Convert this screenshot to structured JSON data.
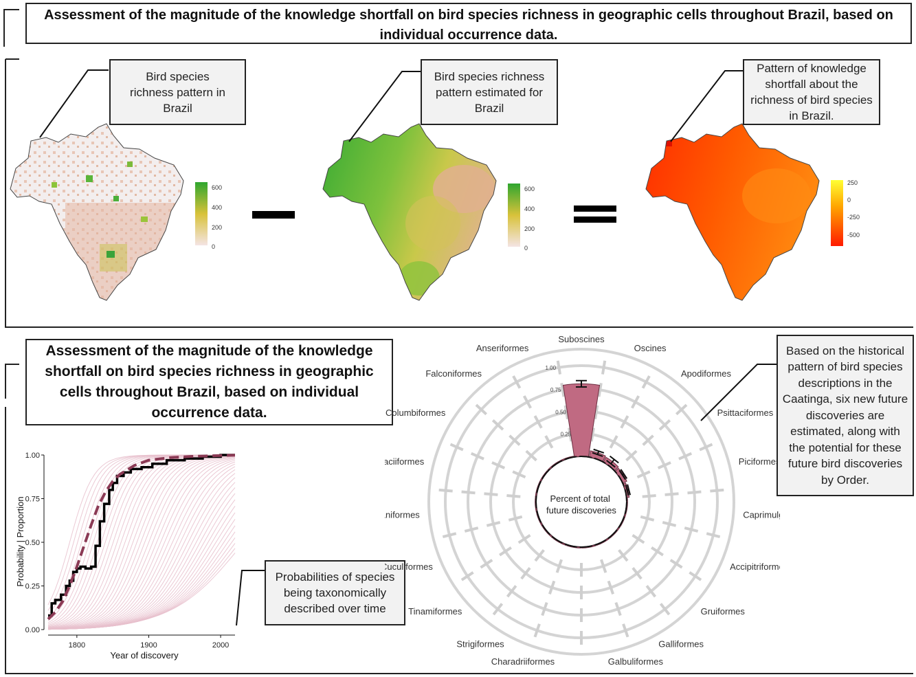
{
  "header": {
    "title": "Assessment of the magnitude of the knowledge shortfall on bird species richness in geographic cells throughout Brazil, based on individual occurrence data."
  },
  "top_panel": {
    "callouts": {
      "observed": "Bird species richness pattern in Brazil",
      "estimated": "Bird species richness pattern estimated for Brazil",
      "shortfall": "Pattern of knowledge shortfall about the richness of bird species in Brazil."
    },
    "legend_observed": [
      "600",
      "400",
      "200",
      "0"
    ],
    "legend_estimated": [
      "600",
      "400",
      "200",
      "0"
    ],
    "legend_shortfall": [
      "250",
      "0",
      "-250",
      "-500"
    ],
    "colors": {
      "richness_low": "#f2d9d9",
      "richness_mid": "#d8c23a",
      "richness_high": "#2fa62f",
      "shortfall_high": "#ffff33",
      "shortfall_low": "#ff1a00"
    }
  },
  "bottom_panel": {
    "title": "Assessment of the magnitude of the knowledge shortfall on bird species richness in geographic cells throughout Brazil, based on individual occurrence data.",
    "probability_callout": "Probabilities of species being taxonomically described over time",
    "caatinga_callout": "Based on the historical pattern of bird species descriptions in the Caatinga, six new future discoveries are estimated, along with the potential for these future bird discoveries by Order.",
    "radial_center_label": "Percent of total future discoveries"
  },
  "chart_data": [
    {
      "type": "line",
      "xlabel": "Year of discovery",
      "ylabel": "Probability | Proportion",
      "xlim": [
        1760,
        2020
      ],
      "ylim": [
        0,
        1
      ],
      "x_ticks": [
        "1800",
        "1900",
        "2000"
      ],
      "y_ticks": [
        "0.00",
        "0.25",
        "0.50",
        "0.75",
        "1.00"
      ],
      "series": [
        {
          "style": "observed-step",
          "color": "#000000",
          "x": [
            1760,
            1765,
            1770,
            1778,
            1785,
            1790,
            1795,
            1800,
            1805,
            1812,
            1820,
            1826,
            1832,
            1838,
            1845,
            1850,
            1856,
            1865,
            1875,
            1890,
            1905,
            1925,
            1950,
            1975,
            2000,
            2020
          ],
          "y": [
            0.08,
            0.15,
            0.17,
            0.2,
            0.25,
            0.28,
            0.33,
            0.35,
            0.36,
            0.35,
            0.36,
            0.48,
            0.62,
            0.72,
            0.8,
            0.84,
            0.88,
            0.9,
            0.92,
            0.93,
            0.95,
            0.97,
            0.98,
            0.99,
            1.0,
            1.0
          ]
        },
        {
          "style": "fitted-dashed",
          "color": "#8b3a55",
          "x": [
            1760,
            1770,
            1780,
            1790,
            1800,
            1810,
            1820,
            1830,
            1840,
            1850,
            1860,
            1880,
            1900,
            1930,
            1960,
            2000,
            2020
          ],
          "y": [
            0.06,
            0.1,
            0.16,
            0.25,
            0.36,
            0.48,
            0.6,
            0.71,
            0.79,
            0.85,
            0.89,
            0.94,
            0.97,
            0.985,
            0.992,
            0.997,
            0.999
          ]
        }
      ]
    },
    {
      "type": "bar",
      "subtype": "radial",
      "r_ticks": [
        "0.25",
        "0.50",
        "0.75",
        "1.00"
      ],
      "categories": [
        "Suboscines",
        "Oscines",
        "Apodiformes",
        "Psittaciformes",
        "Piciformes",
        "Caprimulgiformes",
        "Accipitriformes",
        "Gruiformes",
        "Galliformes",
        "Galbuliformes",
        "Charadriiformes",
        "Strigiformes",
        "Tinamiformes",
        "Cuculiformes",
        "Pelecaniformes",
        "Coraciiformes",
        "Columbiformes",
        "Falconiformes",
        "Anseriformes"
      ],
      "values": [
        0.8,
        0.07,
        0.06,
        0.05,
        0.03,
        0.01,
        0.01,
        0.01,
        0.01,
        0.01,
        0.01,
        0.01,
        0.01,
        0.01,
        0.01,
        0.01,
        0.01,
        0.01,
        0.01
      ],
      "errors": [
        0.035,
        0.02,
        0.03,
        0.01,
        0.01,
        0,
        0,
        0,
        0,
        0,
        0,
        0,
        0,
        0,
        0,
        0,
        0,
        0,
        0
      ],
      "bar_color": "#c06a82"
    }
  ]
}
